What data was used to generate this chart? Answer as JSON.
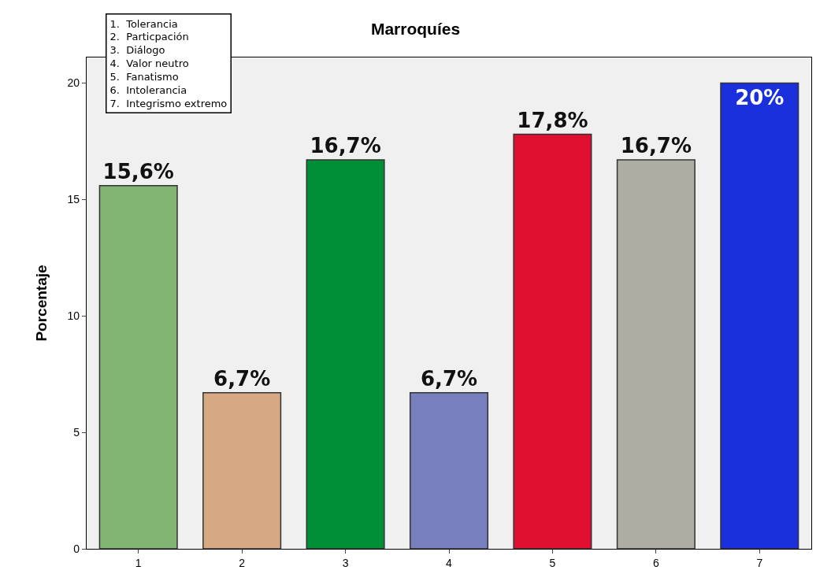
{
  "chart_data": {
    "type": "bar",
    "title": "Marroquíes",
    "ylabel": "Porcentaje",
    "categories": [
      "1",
      "2",
      "3",
      "4",
      "5",
      "6",
      "7"
    ],
    "values": [
      15.6,
      6.7,
      16.7,
      6.7,
      17.8,
      16.7,
      20
    ],
    "colors": [
      "#82b574",
      "#d6a883",
      "#008f36",
      "#7780bc",
      "#e01030",
      "#aeada3",
      "#1a30dc"
    ],
    "value_labels": [
      "15,6%",
      "6,7%",
      "16,7%",
      "6,7%",
      "17,8%",
      "16,7%",
      "20%"
    ],
    "ylim": [
      0,
      21.1
    ],
    "yticks": [
      0,
      5,
      10,
      15,
      20
    ],
    "grid": false,
    "legend": false,
    "annotations": [
      "1.  Tolerancia",
      "2.  Particpación",
      "3.  Diálogo",
      "4.  Valor neutro",
      "5.  Fanatismo",
      "6.  Intolerancia",
      "7.  Integrismo extremo"
    ]
  }
}
